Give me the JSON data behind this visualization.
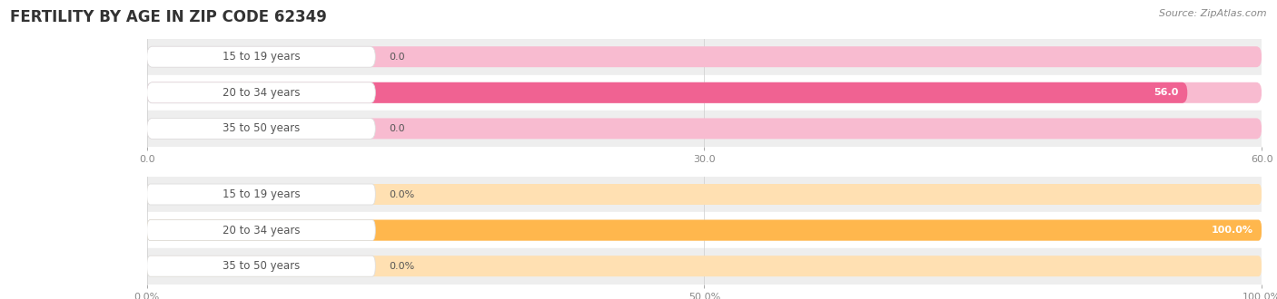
{
  "title": "FERTILITY BY AGE IN ZIP CODE 62349",
  "source_text": "Source: ZipAtlas.com",
  "top_chart": {
    "categories": [
      "15 to 19 years",
      "20 to 34 years",
      "35 to 50 years"
    ],
    "values": [
      0.0,
      56.0,
      0.0
    ],
    "xlim": [
      0,
      60.0
    ],
    "xticks": [
      0.0,
      30.0,
      60.0
    ],
    "xtick_labels": [
      "0.0",
      "30.0",
      "60.0"
    ],
    "bar_color": "#f06292",
    "bar_bg_color": "#f8bbd0",
    "label_values": [
      "0.0",
      "56.0",
      "0.0"
    ],
    "value_label_inside": [
      false,
      true,
      false
    ]
  },
  "bottom_chart": {
    "categories": [
      "15 to 19 years",
      "20 to 34 years",
      "35 to 50 years"
    ],
    "values": [
      0.0,
      100.0,
      0.0
    ],
    "xlim": [
      0,
      100.0
    ],
    "xticks": [
      0.0,
      50.0,
      100.0
    ],
    "xtick_labels": [
      "0.0%",
      "50.0%",
      "100.0%"
    ],
    "bar_color": "#ffb74d",
    "bar_bg_color": "#ffe0b2",
    "label_values": [
      "0.0%",
      "100.0%",
      "0.0%"
    ],
    "value_label_inside": [
      false,
      true,
      false
    ]
  },
  "background_color": "#ffffff",
  "row_bg_colors": [
    "#eeeeee",
    "#ffffff"
  ],
  "label_bg_color": "#ffffff",
  "label_text_color": "#555555",
  "title_color": "#333333",
  "tick_color": "#888888",
  "bar_height": 0.58,
  "title_fontsize": 12,
  "label_fontsize": 8.5,
  "tick_fontsize": 8,
  "value_fontsize": 8,
  "source_fontsize": 8
}
